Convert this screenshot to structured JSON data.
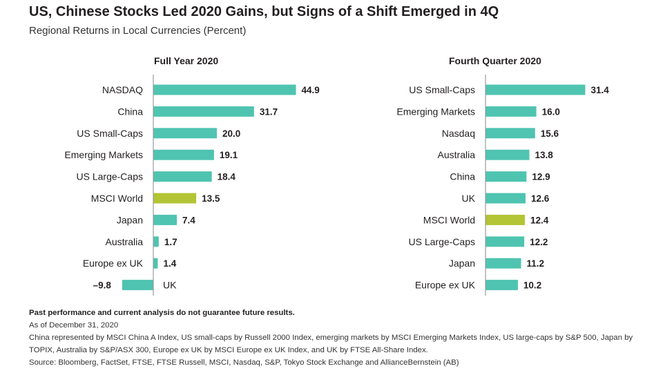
{
  "header": {
    "title": "US, Chinese Stocks Led 2020 Gains, but Signs of a Shift Emerged in 4Q",
    "subtitle": "Regional Returns in Local Currencies (Percent)"
  },
  "colors": {
    "bar": "#4fc4b0",
    "highlight": "#b3c434",
    "axis": "#9a9a9a",
    "text": "#231f20"
  },
  "chart_data": [
    {
      "type": "bar",
      "orientation": "horizontal",
      "title": "Full Year 2020",
      "categories": [
        "NASDAQ",
        "China",
        "US Small-Caps",
        "Emerging Markets",
        "US Large-Caps",
        "MSCI World",
        "Japan",
        "Australia",
        "Europe ex UK",
        "UK"
      ],
      "values": [
        44.9,
        31.7,
        20.0,
        19.1,
        18.4,
        13.5,
        7.4,
        1.7,
        1.4,
        -9.8
      ],
      "labels": [
        "44.9",
        "31.7",
        "20.0",
        "19.1",
        "18.4",
        "13.5",
        "7.4",
        "1.7",
        "1.4",
        "–9.8"
      ],
      "highlight": "MSCI World"
    },
    {
      "type": "bar",
      "orientation": "horizontal",
      "title": "Fourth Quarter 2020",
      "categories": [
        "US Small-Caps",
        "Emerging Markets",
        "Nasdaq",
        "Australia",
        "China",
        "UK",
        "MSCI World",
        "US Large-Caps",
        "Japan",
        "Europe ex UK"
      ],
      "values": [
        31.4,
        16.0,
        15.6,
        13.8,
        12.9,
        12.6,
        12.4,
        12.2,
        11.2,
        10.2
      ],
      "labels": [
        "31.4",
        "16.0",
        "15.6",
        "13.8",
        "12.9",
        "12.6",
        "12.4",
        "12.2",
        "11.2",
        "10.2"
      ],
      "highlight": "MSCI World"
    }
  ],
  "notes": {
    "disclaimer": "Past performance and current analysis do not guarantee future results.",
    "as_of": "As of December 31, 2020",
    "representation": "China represented by MSCI China A Index, US small-caps by Russell 2000 Index, emerging markets by MSCI Emerging Markets Index, US large-caps by S&P 500, Japan by TOPIX, Australia by S&P/ASX 300, Europe ex UK by MSCI Europe ex UK Index, and UK by FTSE All-Share Index.",
    "source": "Source: Bloomberg, FactSet, FTSE, FTSE Russell, MSCI, Nasdaq, S&P, Tokyo Stock Exchange and AllianceBernstein (AB)"
  }
}
